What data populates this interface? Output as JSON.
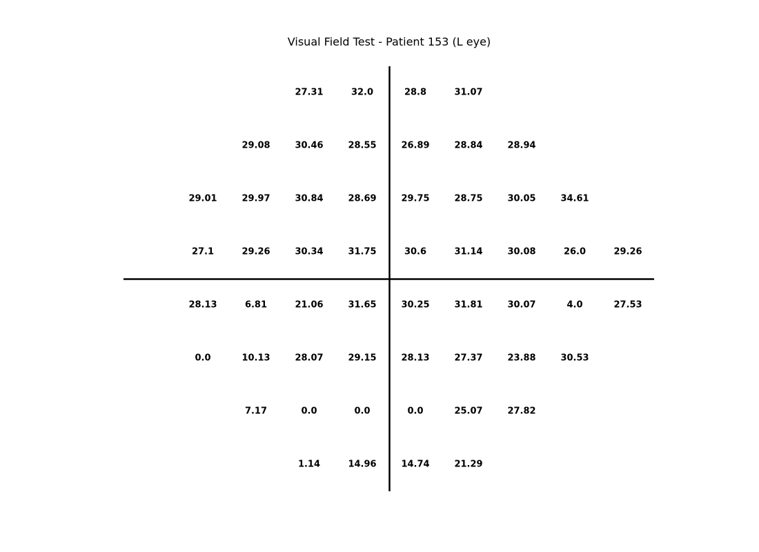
{
  "chart_data": {
    "type": "table",
    "title": "Visual Field Test - Patient 153 (L eye)",
    "grid": false,
    "rows": [
      [
        "",
        "",
        "27.31",
        "32.0",
        "28.8",
        "31.07",
        "",
        "",
        ""
      ],
      [
        "",
        "29.08",
        "30.46",
        "28.55",
        "26.89",
        "28.84",
        "28.94",
        "",
        ""
      ],
      [
        "29.01",
        "29.97",
        "30.84",
        "28.69",
        "29.75",
        "28.75",
        "30.05",
        "34.61",
        ""
      ],
      [
        "27.1",
        "29.26",
        "30.34",
        "31.75",
        "30.6",
        "31.14",
        "30.08",
        "26.0",
        "29.26"
      ],
      [
        "28.13",
        "6.81",
        "21.06",
        "31.65",
        "30.25",
        "31.81",
        "30.07",
        "4.0",
        "27.53"
      ],
      [
        "0.0",
        "10.13",
        "28.07",
        "29.15",
        "28.13",
        "27.37",
        "23.88",
        "30.53",
        ""
      ],
      [
        "",
        "7.17",
        "0.0",
        "0.0",
        "0.0",
        "25.07",
        "27.82",
        "",
        ""
      ],
      [
        "",
        "",
        "1.14",
        "14.96",
        "14.74",
        "21.29",
        "",
        "",
        ""
      ]
    ]
  }
}
